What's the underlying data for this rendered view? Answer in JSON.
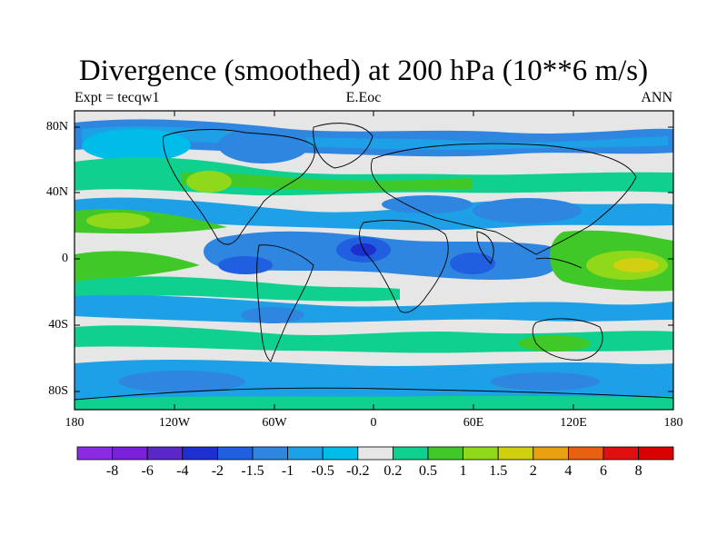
{
  "title": "Divergence (smoothed) at 200 hPa (10**6 m/s)",
  "subtitle_left": "Expt = tecqw1",
  "subtitle_center": "E.Eoc",
  "subtitle_right": "ANN",
  "y_ticks": [
    "80N",
    "40N",
    "0",
    "40S",
    "80S"
  ],
  "x_ticks": [
    "180",
    "120W",
    "60W",
    "0",
    "60E",
    "120E",
    "180"
  ],
  "colorbar": {
    "labels": [
      "-8",
      "-6",
      "-4",
      "-2",
      "-1.5",
      "-1",
      "-0.5",
      "-0.2",
      "0.2",
      "0.5",
      "1",
      "1.5",
      "2",
      "4",
      "6",
      "8"
    ],
    "colors": [
      "#8a2be2",
      "#7a20d8",
      "#5a28c8",
      "#1e2fd0",
      "#1f5fe0",
      "#2e86e0",
      "#1ea0e6",
      "#00bce8",
      "#e6e6e6",
      "#10d090",
      "#40c828",
      "#90d81a",
      "#d0d010",
      "#e8a010",
      "#e86010",
      "#e01010",
      "#d80000"
    ]
  },
  "map": {
    "projection": "Cylindrical Equidistant",
    "lon_range": [
      -180,
      180
    ],
    "lat_range": [
      -90,
      90
    ],
    "field": "200 hPa divergence (smoothed)",
    "units": "10**6 m/s"
  }
}
